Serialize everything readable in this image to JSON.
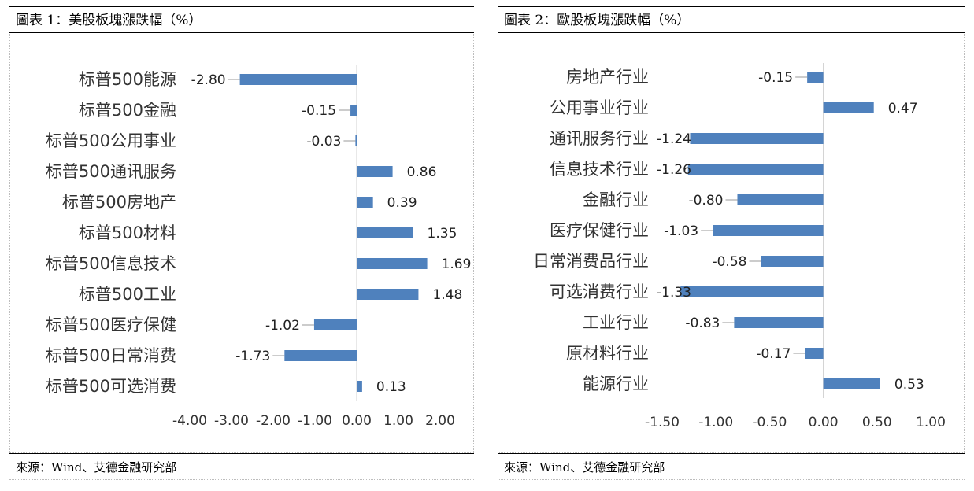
{
  "charts": [
    {
      "id": "us",
      "title": "圖表 1：美股板塊漲跌幅（%）",
      "source": "來源：Wind、艾德金融研究部"
    },
    {
      "id": "eu",
      "title": "圖表 2：歐股板塊漲跌幅（%）",
      "source": "來源：Wind、艾德金融研究部"
    }
  ],
  "chart_data": [
    {
      "type": "bar",
      "orientation": "horizontal",
      "title": "圖表 1：美股板塊漲跌幅（%）",
      "categories": [
        "标普500能源",
        "标普500金融",
        "标普500公用事业",
        "标普500通讯服务",
        "标普500房地产",
        "标普500材料",
        "标普500信息技术",
        "标普500工业",
        "标普500医疗保健",
        "标普500日常消费",
        "标普500可选消费"
      ],
      "values": [
        -2.8,
        -0.15,
        -0.03,
        0.86,
        0.39,
        1.35,
        1.69,
        1.48,
        -1.02,
        -1.73,
        0.13
      ],
      "value_labels": [
        "-2.80",
        "-0.15",
        "-0.03",
        "0.86",
        "0.39",
        "1.35",
        "1.69",
        "1.48",
        "-1.02",
        "-1.73",
        "0.13"
      ],
      "xlim": [
        -4.0,
        2.0
      ],
      "xticks": [
        -4.0,
        -3.0,
        -2.0,
        -1.0,
        0.0,
        1.0,
        2.0
      ],
      "xtick_labels": [
        "-4.00",
        "-3.00",
        "-2.00",
        "-1.00",
        "0.00",
        "1.00",
        "2.00"
      ],
      "bar_color": "#4f81bd",
      "grid": false,
      "legend": "none"
    },
    {
      "type": "bar",
      "orientation": "horizontal",
      "title": "圖表 2：歐股板塊漲跌幅（%）",
      "categories": [
        "房地产行业",
        "公用事业行业",
        "通讯服务行业",
        "信息技术行业",
        "金融行业",
        "医疗保健行业",
        "日常消费品行业",
        "可选消费行业",
        "工业行业",
        "原材料行业",
        "能源行业"
      ],
      "values": [
        -0.15,
        0.47,
        -1.24,
        -1.26,
        -0.8,
        -1.03,
        -0.58,
        -1.33,
        -0.83,
        -0.17,
        0.53
      ],
      "value_labels": [
        "-0.15",
        "0.47",
        "-1.24",
        "-1.26",
        "-0.80",
        "-1.03",
        "-0.58",
        "-1.33",
        "-0.83",
        "-0.17",
        "0.53"
      ],
      "xlim": [
        -1.5,
        1.0
      ],
      "xticks": [
        -1.5,
        -1.0,
        -0.5,
        0.0,
        0.5,
        1.0
      ],
      "xtick_labels": [
        "-1.50",
        "-1.00",
        "-0.50",
        "0.00",
        "0.50",
        "1.00"
      ],
      "bar_color": "#4f81bd",
      "grid": false,
      "legend": "none"
    }
  ]
}
